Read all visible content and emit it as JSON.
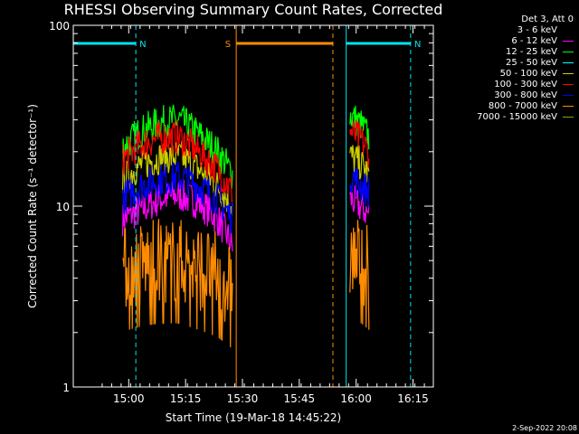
{
  "chart_data": {
    "type": "line",
    "title": "RHESSI Observing Summary Count Rates, Corrected",
    "xlabel": "Start Time (19-Mar-18 14:45:22)",
    "ylabel": "Corrected Count Rate (s⁻¹ detector⁻¹)",
    "y_scale": "log",
    "ylim": [
      1,
      100
    ],
    "xlim_minutes_after_start": [
      0,
      95
    ],
    "x_ticks": [
      "15:00",
      "15:15",
      "15:30",
      "15:45",
      "16:00",
      "16:15"
    ],
    "y_ticks": [
      "1",
      "10",
      "100"
    ],
    "annotations": [
      {
        "label": "N",
        "meaning": "night",
        "color": "#00e5ee",
        "intervals": [
          [
            0,
            16.5
          ],
          [
            72,
            89
          ]
        ]
      },
      {
        "label": "S",
        "meaning": "SAA",
        "color": "#ff8c00",
        "intervals": [
          [
            43,
            68.5
          ]
        ]
      }
    ],
    "legend_header": "Det 3, Att 0",
    "legend_placement": "right",
    "grid": false,
    "series": [
      {
        "name": "3 - 6 keV",
        "color": "#000000",
        "segments": []
      },
      {
        "name": "6 - 12 keV",
        "color": "#ff00ff",
        "segments": [
          {
            "x": [
              13,
              18,
              23,
              28,
              33,
              38,
              42
            ],
            "y": [
              8.5,
              9.5,
              11,
              11.5,
              10.5,
              8.5,
              6
            ]
          },
          {
            "x": [
              73,
              76,
              78
            ],
            "y": [
              11,
              9.8,
              9
            ]
          }
        ]
      },
      {
        "name": "12 - 25 keV",
        "color": "#00ff00",
        "segments": [
          {
            "x": [
              13,
              18,
              23,
              28,
              33,
              38,
              42
            ],
            "y": [
              21,
              26,
              29,
              30,
              25,
              20,
              15
            ]
          },
          {
            "x": [
              73,
              76,
              78
            ],
            "y": [
              32,
              28,
              24
            ]
          }
        ]
      },
      {
        "name": "25 - 50 keV",
        "color": "#00ffff",
        "segments": []
      },
      {
        "name": "50 - 100 keV",
        "color": "#cccc00",
        "segments": [
          {
            "x": [
              13,
              18,
              23,
              28,
              33,
              38,
              42
            ],
            "y": [
              14,
              17,
              18.5,
              19,
              16,
              13,
              10
            ]
          },
          {
            "x": [
              73,
              76,
              78
            ],
            "y": [
              19,
              17,
              15
            ]
          }
        ]
      },
      {
        "name": "100 - 300 keV",
        "color": "#ff0000",
        "segments": [
          {
            "x": [
              13,
              18,
              23,
              28,
              33,
              38,
              42
            ],
            "y": [
              18,
              22,
              24,
              24,
              20,
              16,
              12
            ]
          },
          {
            "x": [
              73,
              76,
              78
            ],
            "y": [
              26,
              23,
              20
            ]
          }
        ]
      },
      {
        "name": "300 - 800 keV",
        "color": "#0000ff",
        "segments": [
          {
            "x": [
              13,
              18,
              23,
              28,
              33,
              38,
              42
            ],
            "y": [
              11,
              13,
              14,
              14.5,
              13,
              11,
              8.5
            ]
          },
          {
            "x": [
              73,
              76,
              78
            ],
            "y": [
              15,
              13,
              12
            ]
          }
        ]
      },
      {
        "name": "800 - 7000 keV",
        "color": "#ff8c00",
        "segments": [
          {
            "x": [
              13,
              18,
              23,
              28,
              33,
              38,
              42
            ],
            "y": [
              4.5,
              4.8,
              5,
              5,
              4.6,
              4.2,
              3.6
            ]
          },
          {
            "x": [
              73,
              76,
              78
            ],
            "y": [
              5.2,
              5,
              4.6
            ]
          }
        ]
      },
      {
        "name": "7000 - 15000 keV",
        "color": "#9aa000",
        "segments": []
      }
    ]
  },
  "footer": {
    "stamp": "2-Sep-2022 20:08"
  }
}
